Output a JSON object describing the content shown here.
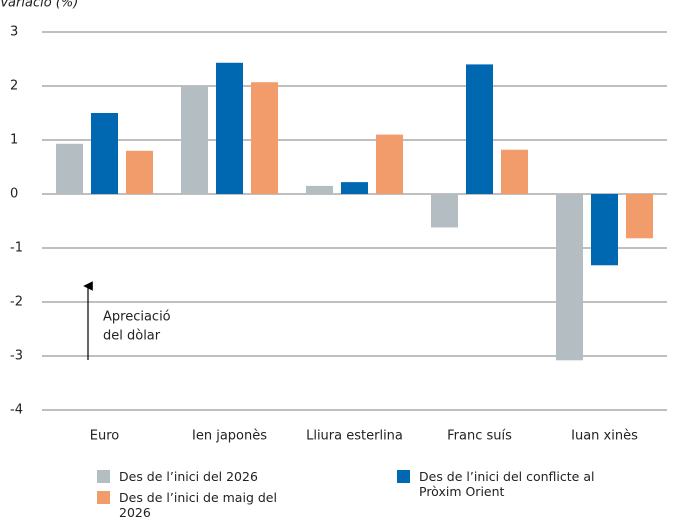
{
  "chart_data": {
    "type": "bar",
    "y_label": "Variació (%)",
    "categories": [
      "Euro",
      "Ien japonès",
      "Lliura esterlina",
      "Franc suís",
      "Iuan xinès"
    ],
    "series": [
      {
        "name": "Des de l’inici del 2026",
        "color": "#b3bdc2",
        "values": [
          0.93,
          2.0,
          0.15,
          -0.62,
          -3.08
        ]
      },
      {
        "name": "Des de l’inici del conflicte al Pròxim Orient",
        "color": "#0067b1",
        "values": [
          1.5,
          2.43,
          0.22,
          2.4,
          -1.32
        ]
      },
      {
        "name": "Des de l’inici de maig del 2026",
        "color": "#f39c6b",
        "values": [
          0.8,
          2.07,
          1.1,
          0.82,
          -0.82
        ]
      }
    ],
    "ylim": [
      -4,
      3
    ],
    "yticks": [
      -4,
      -3,
      -2,
      -1,
      0,
      1,
      2,
      3
    ],
    "grid": true,
    "annotation": [
      "Apreciació",
      "del dòlar"
    ]
  }
}
